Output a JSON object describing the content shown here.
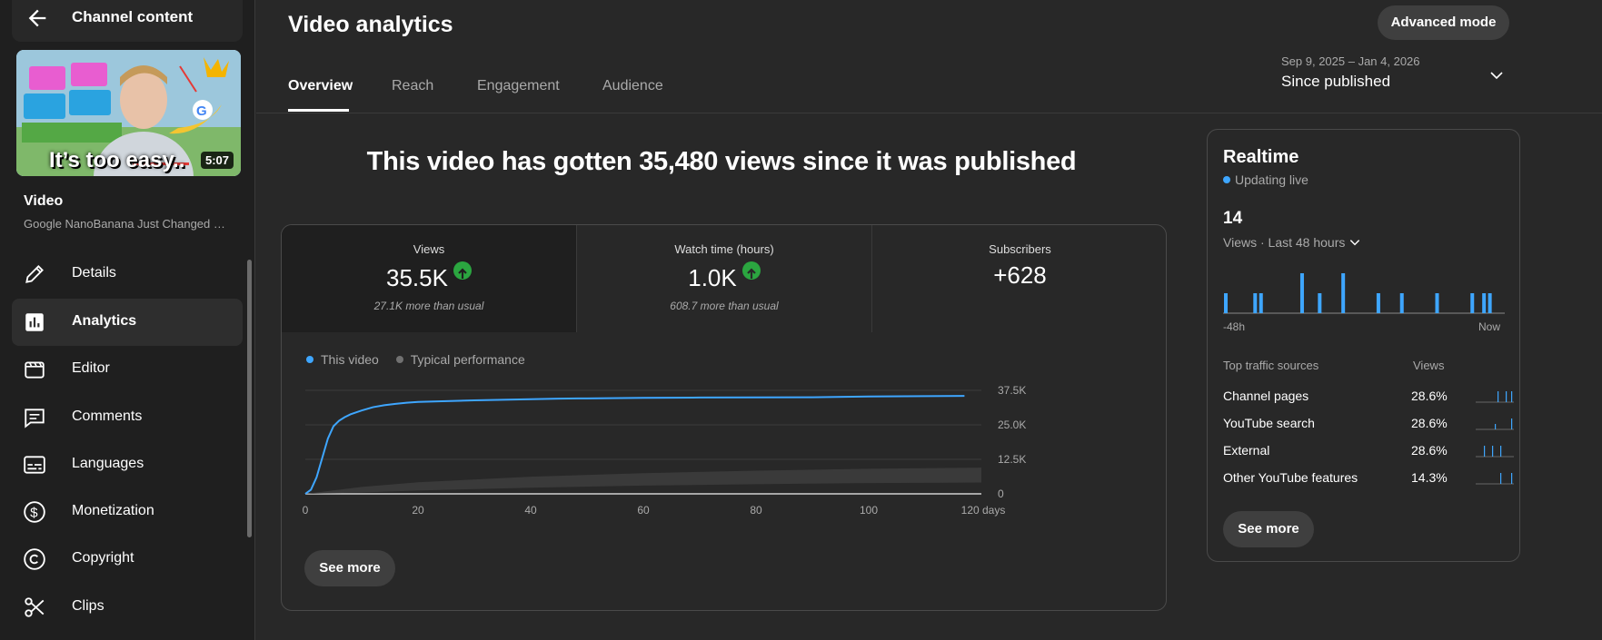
{
  "sidebar": {
    "header_title": "Channel content",
    "thumbnail_text": "It’s too easy..",
    "duration": "5:07",
    "video_label": "Video",
    "video_title": "Google NanoBanana Just Changed Everything",
    "nav": [
      {
        "label": "Details",
        "icon": "pencil-icon"
      },
      {
        "label": "Analytics",
        "icon": "analytics-icon",
        "active": true
      },
      {
        "label": "Editor",
        "icon": "film-icon"
      },
      {
        "label": "Comments",
        "icon": "comment-icon"
      },
      {
        "label": "Languages",
        "icon": "subtitles-icon"
      },
      {
        "label": "Monetization",
        "icon": "dollar-icon"
      },
      {
        "label": "Copyright",
        "icon": "copyright-icon"
      },
      {
        "label": "Clips",
        "icon": "scissors-icon"
      }
    ]
  },
  "header": {
    "title": "Video analytics",
    "advanced_mode": "Advanced mode",
    "tabs": [
      "Overview",
      "Reach",
      "Engagement",
      "Audience"
    ],
    "date_range": "Sep 9, 2025 – Jan 4, 2026",
    "date_label": "Since published"
  },
  "headline": "This video has gotten 35,480 views since it was published",
  "metrics": [
    {
      "label": "Views",
      "value": "35.5K",
      "trend": "up",
      "note": "27.1K more than usual"
    },
    {
      "label": "Watch time (hours)",
      "value": "1.0K",
      "trend": "up",
      "note": "608.7 more than usual"
    },
    {
      "label": "Subscribers",
      "value": "+628",
      "trend": "",
      "note": ""
    }
  ],
  "legend": {
    "this_video": "This video",
    "typical": "Typical performance"
  },
  "see_more": "See more",
  "colors": {
    "accent": "#3ea6ff",
    "up": "#2ba640",
    "band": "#3a3a3a"
  },
  "chart_data": {
    "type": "line",
    "x_label_suffix": "days",
    "x_ticks": [
      "0",
      "20",
      "40",
      "60",
      "80",
      "100",
      "120 days"
    ],
    "y_ticks": [
      "0",
      "12.5K",
      "25.0K",
      "37.5K"
    ],
    "xlim": [
      0,
      120
    ],
    "ylim": [
      0,
      37500
    ],
    "series": [
      {
        "name": "This video",
        "x": [
          0,
          1,
          2,
          3,
          4,
          5,
          6,
          7,
          8,
          10,
          12,
          14,
          16,
          18,
          20,
          25,
          30,
          35,
          40,
          45,
          50,
          60,
          70,
          80,
          90,
          100,
          110,
          117
        ],
        "y": [
          0,
          1500,
          6000,
          13000,
          20000,
          24500,
          26500,
          27800,
          28800,
          30200,
          31400,
          32100,
          32600,
          33000,
          33300,
          33600,
          33900,
          34100,
          34300,
          34500,
          34600,
          34800,
          34900,
          34950,
          35000,
          35300,
          35400,
          35480
        ]
      }
    ],
    "typical_band": {
      "name": "Typical performance",
      "x": [
        0,
        10,
        20,
        40,
        60,
        80,
        100,
        120
      ],
      "low": [
        0,
        500,
        1200,
        2200,
        3000,
        3500,
        3900,
        4100
      ],
      "high": [
        0,
        2500,
        4200,
        6200,
        7500,
        8400,
        9100,
        9500
      ]
    }
  },
  "realtime": {
    "title": "Realtime",
    "status": "Updating live",
    "count": "14",
    "period": "Views · Last 48 hours",
    "axis_start": "-48h",
    "axis_end": "Now",
    "hourly_views": [
      1,
      0,
      0,
      0,
      0,
      1,
      1,
      0,
      0,
      0,
      0,
      0,
      0,
      2,
      0,
      0,
      1,
      0,
      0,
      0,
      2,
      0,
      0,
      0,
      0,
      0,
      1,
      0,
      0,
      0,
      1,
      0,
      0,
      0,
      0,
      0,
      1,
      0,
      0,
      0,
      0,
      0,
      1,
      0,
      1,
      1,
      0,
      0
    ],
    "th_source": "Top traffic sources",
    "th_views": "Views",
    "sources": [
      {
        "name": "Channel pages",
        "pct": "28.6%",
        "spark": [
          0,
          0,
          0,
          0,
          0,
          0,
          0,
          0,
          1,
          0,
          0,
          1,
          0,
          1
        ]
      },
      {
        "name": "YouTube search",
        "pct": "28.6%",
        "spark": [
          0,
          0,
          0,
          0,
          0,
          0,
          0,
          1,
          0,
          0,
          0,
          0,
          0,
          2
        ]
      },
      {
        "name": "External",
        "pct": "28.6%",
        "spark": [
          0,
          0,
          0,
          1,
          0,
          0,
          1,
          0,
          0,
          1,
          0,
          0,
          0,
          0
        ]
      },
      {
        "name": "Other YouTube features",
        "pct": "14.3%",
        "spark": [
          0,
          0,
          0,
          0,
          0,
          0,
          0,
          0,
          0,
          1,
          0,
          0,
          0,
          1
        ]
      }
    ]
  }
}
